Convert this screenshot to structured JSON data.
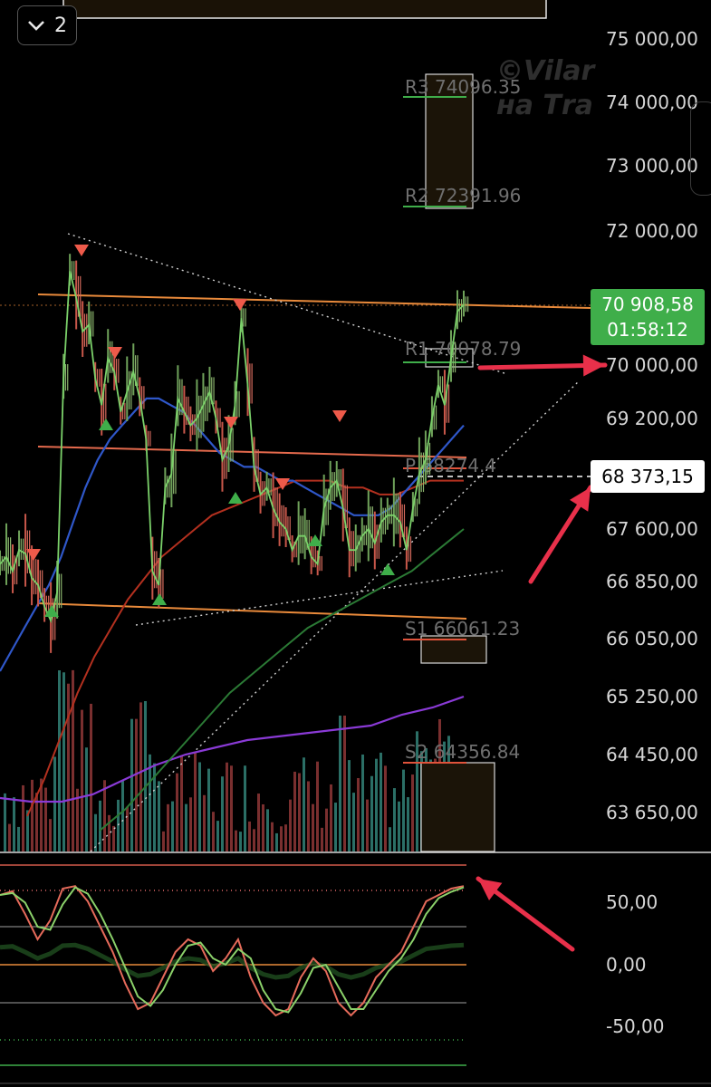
{
  "toolbar": {
    "collapse_count": "2",
    "collapse_icon": "chevron-down-icon"
  },
  "watermark": {
    "line1": "©Vilar",
    "line2": "на Тra"
  },
  "price_axis": {
    "labels": [
      "75 000,00",
      "74 000,00",
      "73 000,00",
      "72 000,00",
      "70 000,00",
      "69 200,00",
      "67 600,00",
      "66 850,00",
      "66 050,00",
      "65 250,00",
      "64 450,00",
      "63 650,00"
    ]
  },
  "current_price": {
    "value": "70 908,58",
    "countdown": "01:58:12",
    "color": "#3fae4a"
  },
  "cursor_price": {
    "value": "68 373,15"
  },
  "pivots": [
    {
      "label": "R3 74096.35",
      "value": 74096.35
    },
    {
      "label": "R2 72391.96",
      "value": 72391.96
    },
    {
      "label": "R1 70078.79",
      "value": 70078.79
    },
    {
      "label": "P 68274.4",
      "value": 68274.4
    },
    {
      "label": "S1 66061.23",
      "value": 66061.23
    },
    {
      "label": "S2 64356.84",
      "value": 64356.84
    }
  ],
  "oscillator_axis": {
    "labels": [
      "50,00",
      "0,00",
      "-50,00"
    ]
  },
  "chart_data": {
    "type": "line",
    "price_scale": {
      "ticks": [
        75000,
        74000,
        73000,
        72000,
        70000,
        69200,
        67600,
        66850,
        66050,
        65250,
        64450,
        63650
      ]
    },
    "price_line": [
      67100,
      67200,
      67000,
      67300,
      67250,
      66900,
      66800,
      66500,
      66300,
      66700,
      69800,
      71400,
      71000,
      70500,
      70600,
      69800,
      69400,
      70100,
      69900,
      69300,
      69600,
      69900,
      69500,
      68900,
      67000,
      66800,
      68200,
      68400,
      69500,
      69300,
      69100,
      69200,
      69400,
      69600,
      69200,
      68600,
      68800,
      69400,
      70700,
      69700,
      68500,
      68100,
      68200,
      67900,
      67700,
      67600,
      67300,
      67500,
      67500,
      67200,
      67100,
      67900,
      68200,
      68300,
      67900,
      67300,
      67300,
      67500,
      67600,
      67400,
      67700,
      67800,
      67800,
      67700,
      67300,
      67900,
      68400,
      68600,
      69200,
      69700,
      69400,
      70100,
      70800,
      70900
    ],
    "sma_blue": [
      65600,
      65900,
      66200,
      66500,
      66800,
      67200,
      67700,
      68200,
      68600,
      68900,
      69100,
      69300,
      69500,
      69500,
      69400,
      69300,
      69100,
      68900,
      68700,
      68600,
      68500,
      68500,
      68400,
      68300,
      68300,
      68200,
      68100,
      68000,
      67900,
      67800,
      67800,
      67800,
      67900,
      68100,
      68300,
      68500,
      68700,
      68900,
      69100
    ],
    "sma_red": [
      63600,
      64100,
      64700,
      65300,
      65800,
      66200,
      66600,
      66900,
      67200,
      67400,
      67600,
      67800,
      67900,
      68000,
      68100,
      68200,
      68300,
      68300,
      68300,
      68200,
      68200,
      68100,
      68100,
      68200,
      68300,
      68300,
      68300
    ],
    "sma_green": [
      63400,
      63700,
      64100,
      64500,
      64900,
      65300,
      65600,
      65900,
      66200,
      66400,
      66600,
      66800,
      67000,
      67300,
      67600
    ],
    "sma_purple": [
      63850,
      63800,
      63800,
      63900,
      64100,
      64300,
      64450,
      64550,
      64650,
      64700,
      64750,
      64800,
      64850,
      65000,
      65100,
      65250
    ],
    "oscillator": {
      "lines": [
        60,
        50,
        30,
        0,
        -30,
        -60
      ],
      "ylim": [
        -80,
        80
      ]
    }
  }
}
